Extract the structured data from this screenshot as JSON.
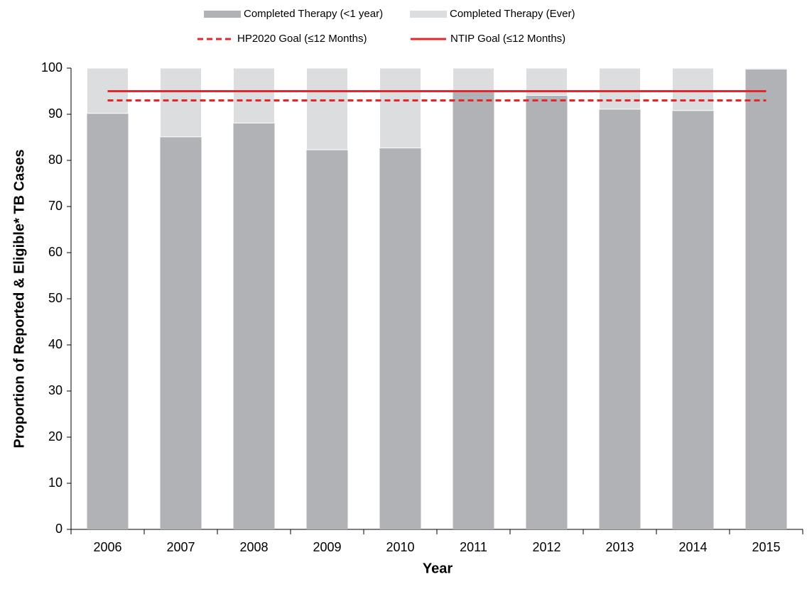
{
  "chart_data": {
    "type": "stacked_bar",
    "xlabel": "Year",
    "ylabel": "Proportion of Reported & Eligible* TB Cases",
    "categories": [
      "2006",
      "2007",
      "2008",
      "2009",
      "2010",
      "2011",
      "2012",
      "2013",
      "2014",
      "2015"
    ],
    "series": [
      {
        "name": "Completed Therapy (<1 year)",
        "color": "#b1b2b5",
        "values": [
          90.2,
          85.1,
          88.1,
          82.3,
          82.7,
          95.0,
          94.1,
          91.1,
          90.8,
          99.8
        ]
      },
      {
        "name": "Completed Therapy (Ever)",
        "color": "#dcdddf",
        "values": [
          9.8,
          14.9,
          11.9,
          17.7,
          17.3,
          5.0,
          5.9,
          8.9,
          9.2,
          0.2
        ]
      }
    ],
    "reference_lines": [
      {
        "name": "HP2020 Goal (≤12 Months)",
        "value": 93,
        "color": "#e3262b",
        "style": "dashed"
      },
      {
        "name": "NTIP Goal (≤12 Months)",
        "value": 95,
        "color": "#e3262b",
        "style": "solid"
      }
    ],
    "ylim": [
      0,
      100
    ],
    "yticks": [
      0,
      10,
      20,
      30,
      40,
      50,
      60,
      70,
      80,
      90,
      100
    ],
    "grid": false
  }
}
